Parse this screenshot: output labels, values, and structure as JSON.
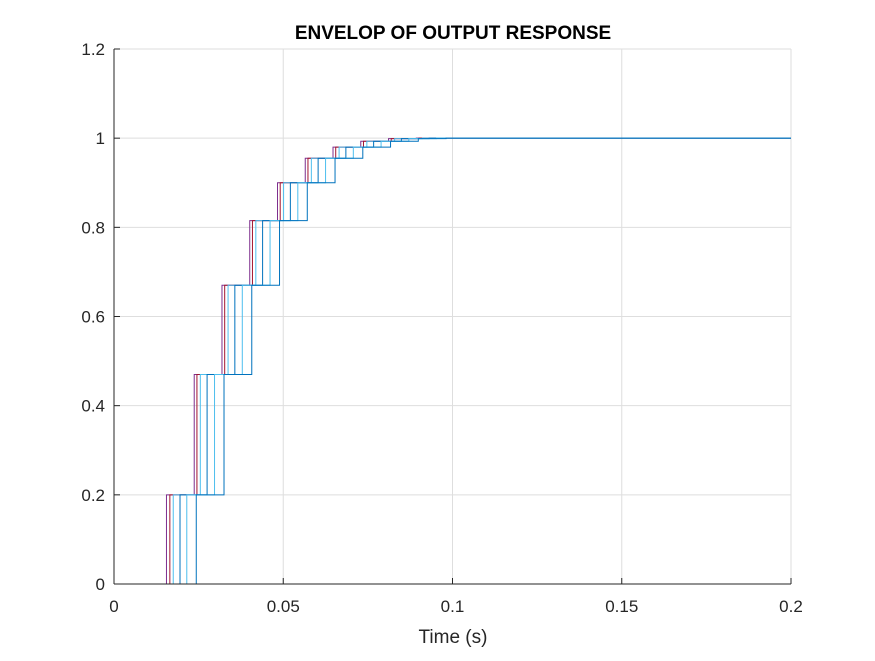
{
  "chart_data": {
    "type": "line",
    "title": "ENVELOP OF OUTPUT RESPONSE",
    "xlabel": "Time (s)",
    "ylabel": "",
    "xlim": [
      0,
      0.2
    ],
    "ylim": [
      0,
      1.2
    ],
    "xticks": [
      0,
      0.05,
      0.1,
      0.15,
      0.2
    ],
    "xtick_labels": [
      "0",
      "0.05",
      "0.1",
      "0.15",
      "0.2"
    ],
    "yticks": [
      0,
      0.2,
      0.4,
      0.6,
      0.8,
      1,
      1.2
    ],
    "ytick_labels": [
      "0",
      "0.2",
      "0.4",
      "0.6",
      "0.8",
      "1",
      "1.2"
    ],
    "grid": true,
    "step_levels": [
      0.2,
      0.47,
      0.67,
      0.815,
      0.9,
      0.955,
      0.98,
      0.993,
      0.999,
      1.0
    ],
    "final_value": 1.0,
    "series": [
      {
        "color": "#7E2F8E",
        "x": [
          0,
          0.0155,
          0.0155,
          0.0237,
          0.0237,
          0.0319,
          0.0319,
          0.0401,
          0.0401,
          0.0483,
          0.0483,
          0.0565,
          0.0565,
          0.0647,
          0.0647,
          0.0729,
          0.0729,
          0.0811,
          0.0811,
          0.0893,
          0.0893,
          0.2
        ],
        "y": [
          0,
          0,
          0.2,
          0.2,
          0.47,
          0.47,
          0.67,
          0.67,
          0.815,
          0.815,
          0.9,
          0.9,
          0.955,
          0.955,
          0.98,
          0.98,
          0.993,
          0.993,
          0.999,
          0.999,
          1.0,
          1.0
        ]
      },
      {
        "color": "#A2142F",
        "x": [
          0,
          0.0165,
          0.0165,
          0.0245,
          0.0245,
          0.0327,
          0.0327,
          0.0409,
          0.0409,
          0.0491,
          0.0491,
          0.0573,
          0.0573,
          0.0655,
          0.0655,
          0.0737,
          0.0737,
          0.0819,
          0.0819,
          0.0901,
          0.0901,
          0.2
        ],
        "y": [
          0,
          0,
          0.2,
          0.2,
          0.47,
          0.47,
          0.67,
          0.67,
          0.815,
          0.815,
          0.9,
          0.9,
          0.955,
          0.955,
          0.98,
          0.98,
          0.993,
          0.993,
          0.999,
          0.999,
          1.0,
          1.0
        ]
      },
      {
        "color": "#4DBEEE",
        "x": [
          0,
          0.0175,
          0.0175,
          0.0255,
          0.0255,
          0.0337,
          0.0337,
          0.0419,
          0.0419,
          0.0501,
          0.0501,
          0.0583,
          0.0583,
          0.0665,
          0.0665,
          0.0747,
          0.0747,
          0.0829,
          0.0829,
          0.0911,
          0.0911,
          0.2
        ],
        "y": [
          0,
          0,
          0.2,
          0.2,
          0.47,
          0.47,
          0.67,
          0.67,
          0.815,
          0.815,
          0.9,
          0.9,
          0.955,
          0.955,
          0.98,
          0.98,
          0.993,
          0.993,
          0.999,
          0.999,
          1.0,
          1.0
        ]
      },
      {
        "color": "#0072BD",
        "x": [
          0,
          0.0195,
          0.0195,
          0.0275,
          0.0275,
          0.0357,
          0.0357,
          0.0439,
          0.0439,
          0.0521,
          0.0521,
          0.0603,
          0.0603,
          0.0685,
          0.0685,
          0.0767,
          0.0767,
          0.0849,
          0.0849,
          0.0931,
          0.0931,
          0.2
        ],
        "y": [
          0,
          0,
          0.2,
          0.2,
          0.47,
          0.47,
          0.67,
          0.67,
          0.815,
          0.815,
          0.9,
          0.9,
          0.955,
          0.955,
          0.98,
          0.98,
          0.993,
          0.993,
          0.999,
          0.999,
          1.0,
          1.0
        ]
      },
      {
        "color": "#4DBEEE",
        "x": [
          0,
          0.0215,
          0.0215,
          0.0297,
          0.0297,
          0.0379,
          0.0379,
          0.0461,
          0.0461,
          0.0543,
          0.0543,
          0.0625,
          0.0625,
          0.0707,
          0.0707,
          0.0789,
          0.0789,
          0.0871,
          0.0871,
          0.0953,
          0.0953,
          0.2
        ],
        "y": [
          0,
          0,
          0.2,
          0.2,
          0.47,
          0.47,
          0.67,
          0.67,
          0.815,
          0.815,
          0.9,
          0.9,
          0.955,
          0.955,
          0.98,
          0.98,
          0.993,
          0.993,
          0.999,
          0.999,
          1.0,
          1.0
        ]
      },
      {
        "color": "#0072BD",
        "x": [
          0,
          0.0243,
          0.0243,
          0.0325,
          0.0325,
          0.0407,
          0.0407,
          0.0489,
          0.0489,
          0.0571,
          0.0571,
          0.0653,
          0.0653,
          0.0735,
          0.0735,
          0.0817,
          0.0817,
          0.0899,
          0.0899,
          0.0981,
          0.0981,
          0.2
        ],
        "y": [
          0,
          0,
          0.2,
          0.2,
          0.47,
          0.47,
          0.67,
          0.67,
          0.815,
          0.815,
          0.9,
          0.9,
          0.955,
          0.955,
          0.98,
          0.98,
          0.993,
          0.993,
          0.999,
          0.999,
          1.0,
          1.0
        ]
      }
    ]
  }
}
